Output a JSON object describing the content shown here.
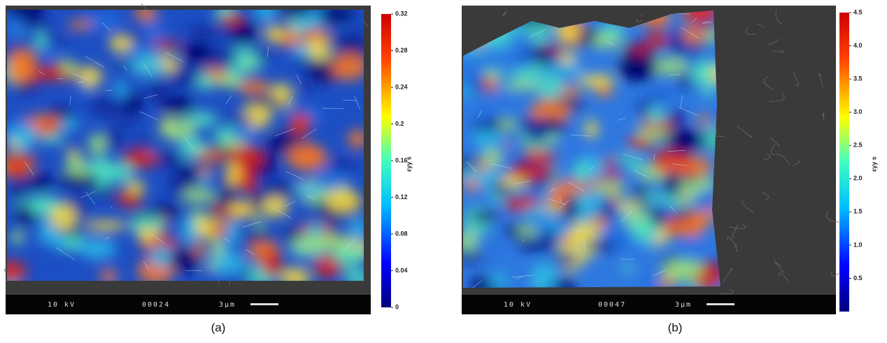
{
  "panels": [
    {
      "caption": "(a)",
      "info": [
        "10 kV",
        "00024",
        "3μm"
      ],
      "colorbar": {
        "label": "εyy s",
        "lim": [
          0,
          0.32
        ],
        "ticks": [
          0,
          0.04,
          0.08,
          0.12,
          0.16,
          0.2,
          0.24,
          0.28,
          0.32
        ]
      }
    },
    {
      "caption": "(b)",
      "info": [
        "10 kV",
        "00047",
        "3μm"
      ],
      "colorbar": {
        "label": "εyy s",
        "lim": [
          0,
          4.5
        ],
        "ticks": [
          0.5,
          {
            "value": 1,
            "label": "1.0"
          },
          1.5,
          {
            "value": 2,
            "label": "2.0"
          },
          2.5,
          {
            "value": 3,
            "label": "3.0"
          },
          3.5,
          {
            "value": 4,
            "label": "4.0"
          },
          4.5
        ]
      }
    }
  ]
}
